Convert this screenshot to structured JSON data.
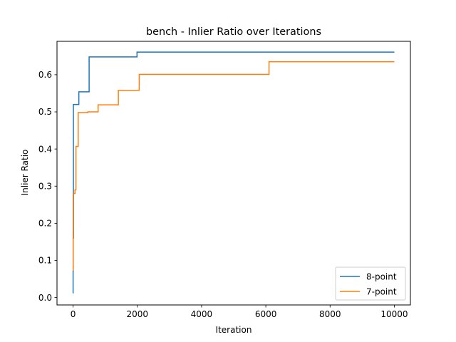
{
  "chart_data": {
    "type": "line",
    "title": "bench - Inlier Ratio over Iterations",
    "xlabel": "Iteration",
    "ylabel": "Inlier Ratio",
    "xlim": [
      -500,
      10500
    ],
    "ylim": [
      -0.02,
      0.69
    ],
    "xticks": [
      0,
      2000,
      4000,
      6000,
      8000,
      10000
    ],
    "xtick_labels": [
      "0",
      "2000",
      "4000",
      "6000",
      "8000",
      "10000"
    ],
    "yticks": [
      0.0,
      0.1,
      0.2,
      0.3,
      0.4,
      0.5,
      0.6
    ],
    "ytick_labels": [
      "0.0",
      "0.1",
      "0.2",
      "0.3",
      "0.4",
      "0.5",
      "0.6"
    ],
    "grid": false,
    "legend_position": "lower-right",
    "series": [
      {
        "name": "8-point",
        "color": "#1f77b4",
        "step": true,
        "points": [
          [
            0,
            0.012
          ],
          [
            1,
            0.07
          ],
          [
            3,
            0.16
          ],
          [
            5,
            0.28
          ],
          [
            10,
            0.52
          ],
          [
            180,
            0.554
          ],
          [
            500,
            0.648
          ],
          [
            1990,
            0.661
          ],
          [
            10000,
            0.661
          ]
        ]
      },
      {
        "name": "7-point",
        "color": "#ff7f0e",
        "step": true,
        "points": [
          [
            0,
            0.073
          ],
          [
            5,
            0.16
          ],
          [
            15,
            0.28
          ],
          [
            60,
            0.29
          ],
          [
            90,
            0.407
          ],
          [
            160,
            0.498
          ],
          [
            460,
            0.5
          ],
          [
            780,
            0.519
          ],
          [
            1410,
            0.558
          ],
          [
            2060,
            0.601
          ],
          [
            6100,
            0.635
          ],
          [
            10000,
            0.635
          ]
        ]
      }
    ]
  }
}
